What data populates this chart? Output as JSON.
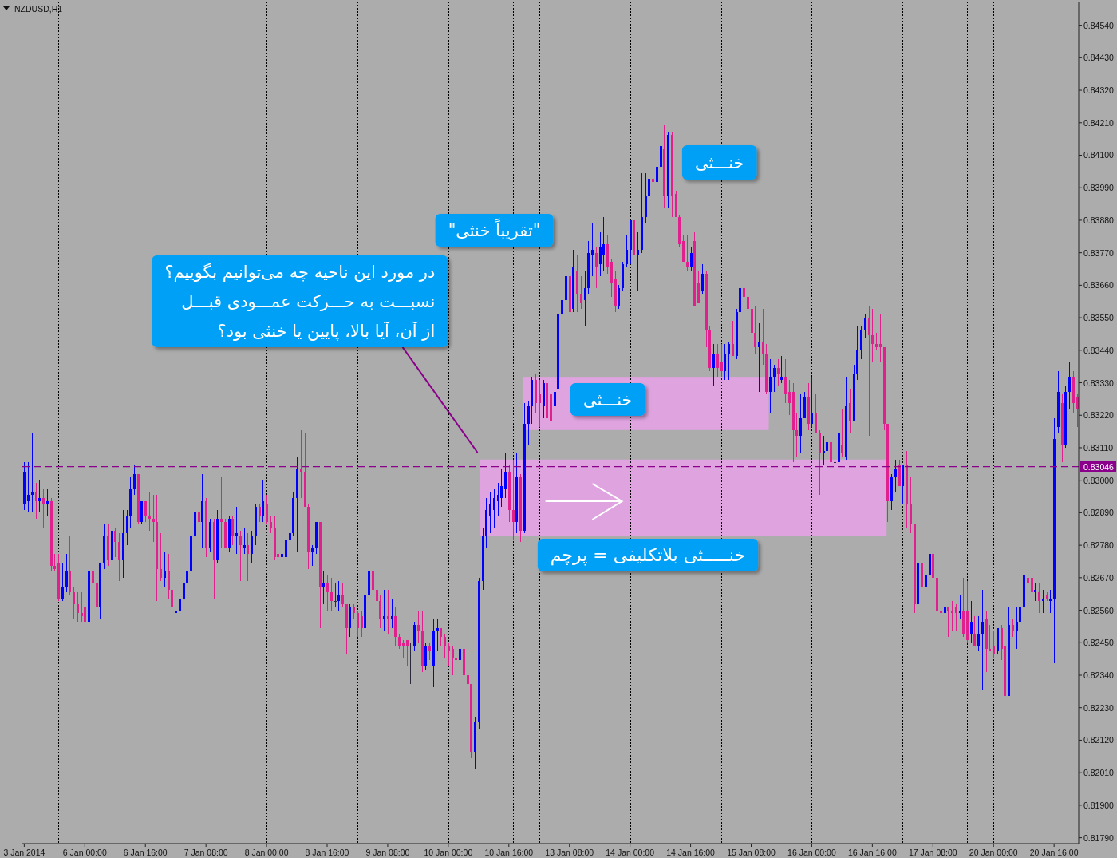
{
  "chart_data": {
    "type": "candlestick",
    "title": "NZDUSD,H1",
    "categories": [
      "3 Jan 2014",
      null,
      null,
      null,
      null,
      null,
      null,
      null,
      null,
      null,
      null,
      null,
      null,
      null,
      null,
      null,
      "6 Jan 00:00",
      null,
      null,
      null,
      null,
      null,
      null,
      null,
      null,
      null,
      null,
      null,
      null,
      null,
      null,
      null,
      "6 Jan 16:00",
      null,
      null,
      null,
      null,
      null,
      null,
      null,
      null,
      null,
      null,
      null,
      null,
      null,
      null,
      null,
      "7 Jan 08:00",
      null,
      null,
      null,
      null,
      null,
      null,
      null,
      null,
      null,
      null,
      null,
      null,
      null,
      null,
      null,
      "8 Jan 00:00",
      null,
      null,
      null,
      null,
      null,
      null,
      null,
      null,
      null,
      null,
      null,
      null,
      null,
      null,
      null,
      "8 Jan 16:00",
      null,
      null,
      null,
      null,
      null,
      null,
      null,
      null,
      null,
      null,
      null,
      null,
      null,
      null,
      null,
      "9 Jan 08:00",
      null,
      null,
      null,
      null,
      null,
      null,
      null,
      null,
      null,
      null,
      null,
      null,
      null,
      null,
      null,
      "10 Jan 00:00",
      null,
      null,
      null,
      null,
      null,
      null,
      null,
      null,
      null,
      null,
      null,
      null,
      null,
      null,
      null,
      "10 Jan 16:00",
      null,
      null,
      null,
      null,
      null,
      null,
      null,
      null,
      null,
      null,
      null,
      null,
      null,
      null,
      null,
      "13 Jan 08:00",
      null,
      null,
      null,
      null,
      null,
      null,
      null,
      null,
      null,
      null,
      null,
      null,
      null,
      null,
      null,
      "14 Jan 00:00",
      null,
      null,
      null,
      null,
      null,
      null,
      null,
      null,
      null,
      null,
      null,
      null,
      null,
      null,
      null,
      "14 Jan 16:00",
      null,
      null,
      null,
      null,
      null,
      null,
      null,
      null,
      null,
      null,
      null,
      null,
      null,
      null,
      null,
      "15 Jan 08:00",
      null,
      null,
      null,
      null,
      null,
      null,
      null,
      null,
      null,
      null,
      null,
      null,
      null,
      null,
      null,
      "16 Jan 00:00",
      null,
      null,
      null,
      null,
      null,
      null,
      null,
      null,
      null,
      null,
      null,
      null,
      null,
      null,
      null,
      "16 Jan 16:00",
      null,
      null,
      null,
      null,
      null,
      null,
      null,
      null,
      null,
      null,
      null,
      null,
      null,
      null,
      null,
      "17 Jan 08:00",
      null,
      null,
      null,
      null,
      null,
      null,
      null,
      null,
      null,
      null,
      null,
      null,
      null,
      null,
      null,
      "20 Jan 00:00",
      null,
      null,
      null,
      null,
      null,
      null,
      null,
      null,
      null,
      null,
      null,
      null,
      null,
      null,
      null,
      "20 Jan 16:00",
      null,
      null,
      null,
      null,
      null,
      null
    ],
    "ohlc": [
      [
        0.8292,
        0.8306,
        0.829,
        0.8303
      ],
      [
        0.8293,
        0.8306,
        0.8289,
        0.8295
      ],
      [
        0.8295,
        0.8316,
        0.8289,
        0.8296
      ],
      [
        0.8296,
        0.8299,
        0.8287,
        0.8293
      ],
      [
        0.8293,
        0.83,
        0.8289,
        0.8294
      ],
      [
        0.8294,
        0.8297,
        0.8284,
        0.8292
      ],
      [
        0.8292,
        0.8297,
        0.8288,
        0.8293
      ],
      [
        0.8293,
        0.8294,
        0.8269,
        0.8271
      ],
      [
        0.8271,
        0.8275,
        0.8269,
        0.827
      ],
      [
        0.8272,
        0.8275,
        0.8259,
        0.826
      ],
      [
        0.826,
        0.8272,
        0.8259,
        0.8264
      ],
      [
        0.8264,
        0.8275,
        0.8262,
        0.8269
      ],
      [
        0.8269,
        0.8281,
        0.8261,
        0.8262
      ],
      [
        0.8262,
        0.8264,
        0.8253,
        0.8258
      ],
      [
        0.8258,
        0.8262,
        0.8252,
        0.8255
      ],
      [
        0.8255,
        0.8262,
        0.8252,
        0.8254
      ],
      [
        0.8257,
        0.8266,
        0.8251,
        0.8252
      ],
      [
        0.8252,
        0.827,
        0.825,
        0.8269
      ],
      [
        0.8269,
        0.8279,
        0.8256,
        0.8265
      ],
      [
        0.8265,
        0.8272,
        0.8256,
        0.8257
      ],
      [
        0.8257,
        0.8272,
        0.8253,
        0.8272
      ],
      [
        0.8272,
        0.8285,
        0.827,
        0.8281
      ],
      [
        0.8281,
        0.8285,
        0.8271,
        0.8273
      ],
      [
        0.8273,
        0.8284,
        0.8264,
        0.8283
      ],
      [
        0.8283,
        0.8284,
        0.8274,
        0.8279
      ],
      [
        0.8279,
        0.8282,
        0.8266,
        0.8273
      ],
      [
        0.8273,
        0.829,
        0.8267,
        0.8282
      ],
      [
        0.8282,
        0.829,
        0.8278,
        0.8288
      ],
      [
        0.8288,
        0.8301,
        0.8284,
        0.8297
      ],
      [
        0.8297,
        0.8305,
        0.8295,
        0.8302
      ],
      [
        0.8302,
        0.8302,
        0.8285,
        0.8286
      ],
      [
        0.8286,
        0.8293,
        0.8285,
        0.8293
      ],
      [
        0.8293,
        0.8293,
        0.8286,
        0.8288
      ],
      [
        0.8288,
        0.8296,
        0.8283,
        0.8287
      ],
      [
        0.8287,
        0.8295,
        0.8279,
        0.8286
      ],
      [
        0.8286,
        0.8295,
        0.8259,
        0.827
      ],
      [
        0.827,
        0.8282,
        0.8266,
        0.8267
      ],
      [
        0.8267,
        0.8276,
        0.8264,
        0.8269
      ],
      [
        0.8269,
        0.8275,
        0.826,
        0.8263
      ],
      [
        0.8263,
        0.8267,
        0.8255,
        0.8257
      ],
      [
        0.8255,
        0.8267,
        0.8253,
        0.8256
      ],
      [
        0.8256,
        0.8265,
        0.8255,
        0.826
      ],
      [
        0.826,
        0.8271,
        0.8259,
        0.8265
      ],
      [
        0.8265,
        0.8277,
        0.8261,
        0.8269
      ],
      [
        0.8269,
        0.8283,
        0.8265,
        0.8281
      ],
      [
        0.8281,
        0.8292,
        0.8273,
        0.8289
      ],
      [
        0.8289,
        0.8297,
        0.8286,
        0.8286
      ],
      [
        0.8286,
        0.8302,
        0.8277,
        0.8293
      ],
      [
        0.8293,
        0.8294,
        0.8274,
        0.8277
      ],
      [
        0.8277,
        0.8287,
        0.8276,
        0.8286
      ],
      [
        0.8286,
        0.8287,
        0.826,
        0.8273
      ],
      [
        0.8273,
        0.829,
        0.8272,
        0.8287
      ],
      [
        0.8287,
        0.8301,
        0.8277,
        0.8286
      ],
      [
        0.8286,
        0.8287,
        0.8277,
        0.8277
      ],
      [
        0.8277,
        0.8288,
        0.8276,
        0.8287
      ],
      [
        0.8287,
        0.8288,
        0.8278,
        0.8281
      ],
      [
        0.8281,
        0.8291,
        0.8275,
        0.8282
      ],
      [
        0.8281,
        0.8283,
        0.8266,
        0.8278
      ],
      [
        0.8277,
        0.8284,
        0.8275,
        0.8278
      ],
      [
        0.8278,
        0.8282,
        0.8266,
        0.8275
      ],
      [
        0.8275,
        0.8283,
        0.8272,
        0.8281
      ],
      [
        0.8281,
        0.8292,
        0.8278,
        0.8291
      ],
      [
        0.8291,
        0.8292,
        0.8286,
        0.8288
      ],
      [
        0.8288,
        0.83,
        0.8286,
        0.8293
      ],
      [
        0.8292,
        0.8295,
        0.8285,
        0.8286
      ],
      [
        0.8286,
        0.8288,
        0.8282,
        0.8284
      ],
      [
        0.8284,
        0.8288,
        0.8273,
        0.8274
      ],
      [
        0.8275,
        0.8278,
        0.8266,
        0.8274
      ],
      [
        0.8274,
        0.828,
        0.8271,
        0.8275
      ],
      [
        0.8274,
        0.828,
        0.8268,
        0.828
      ],
      [
        0.828,
        0.8286,
        0.8276,
        0.8282
      ],
      [
        0.8282,
        0.8296,
        0.8281,
        0.8294
      ],
      [
        0.8294,
        0.8308,
        0.8276,
        0.8304
      ],
      [
        0.8304,
        0.8317,
        0.8294,
        0.8303
      ],
      [
        0.8303,
        0.8316,
        0.8291,
        0.8291
      ],
      [
        0.8291,
        0.8292,
        0.827,
        0.8276
      ],
      [
        0.8276,
        0.8278,
        0.8271,
        0.8277
      ],
      [
        0.8277,
        0.8286,
        0.8275,
        0.8286
      ],
      [
        0.8286,
        0.8286,
        0.825,
        0.8264
      ],
      [
        0.8264,
        0.8269,
        0.8258,
        0.8265
      ],
      [
        0.8265,
        0.8268,
        0.8256,
        0.8262
      ],
      [
        0.8262,
        0.8267,
        0.8256,
        0.8259
      ],
      [
        0.8259,
        0.8265,
        0.8257,
        0.8259
      ],
      [
        0.8259,
        0.8266,
        0.8256,
        0.8261
      ],
      [
        0.8261,
        0.8265,
        0.8257,
        0.8258
      ],
      [
        0.8258,
        0.8258,
        0.8241,
        0.825
      ],
      [
        0.825,
        0.8258,
        0.8247,
        0.8257
      ],
      [
        0.8257,
        0.8258,
        0.8253,
        0.8255
      ],
      [
        0.8255,
        0.8256,
        0.8247,
        0.825
      ],
      [
        0.8254,
        0.8256,
        0.8247,
        0.825
      ],
      [
        0.825,
        0.8263,
        0.8249,
        0.8261
      ],
      [
        0.8261,
        0.827,
        0.826,
        0.8269
      ],
      [
        0.8269,
        0.8272,
        0.8262,
        0.8263
      ],
      [
        0.8263,
        0.8265,
        0.8257,
        0.8259
      ],
      [
        0.8259,
        0.8261,
        0.825,
        0.8253
      ],
      [
        0.8253,
        0.8263,
        0.8249,
        0.8254
      ],
      [
        0.8254,
        0.8263,
        0.8248,
        0.8253
      ],
      [
        0.8253,
        0.826,
        0.825,
        0.8254
      ],
      [
        0.8254,
        0.8257,
        0.8244,
        0.8247
      ],
      [
        0.8247,
        0.8248,
        0.8243,
        0.8244
      ],
      [
        0.8245,
        0.8246,
        0.824,
        0.8244
      ],
      [
        0.8246,
        0.8246,
        0.8237,
        0.8244
      ],
      [
        0.8244,
        0.8245,
        0.8231,
        0.8244
      ],
      [
        0.8244,
        0.8252,
        0.8242,
        0.8251
      ],
      [
        0.8251,
        0.8256,
        0.8245,
        0.8249
      ],
      [
        0.8249,
        0.8256,
        0.8235,
        0.8237
      ],
      [
        0.8237,
        0.8245,
        0.8236,
        0.8244
      ],
      [
        0.8244,
        0.8245,
        0.8239,
        0.8242
      ],
      [
        0.8237,
        0.8253,
        0.823,
        0.8249
      ],
      [
        0.8249,
        0.8253,
        0.8242,
        0.825
      ],
      [
        0.825,
        0.825,
        0.8244,
        0.8247
      ],
      [
        0.8247,
        0.8248,
        0.824,
        0.8244
      ],
      [
        0.8244,
        0.8245,
        0.8237,
        0.8242
      ],
      [
        0.8243,
        0.8244,
        0.8234,
        0.824
      ],
      [
        0.824,
        0.8241,
        0.8235,
        0.8239
      ],
      [
        0.8239,
        0.8248,
        0.8237,
        0.8243
      ],
      [
        0.8243,
        0.8243,
        0.8233,
        0.8234
      ],
      [
        0.8234,
        0.8236,
        0.823,
        0.8231
      ],
      [
        0.8231,
        0.8231,
        0.8206,
        0.8208
      ],
      [
        0.8208,
        0.822,
        0.8202,
        0.8218
      ],
      [
        0.8218,
        0.8267,
        0.8216,
        0.8266
      ],
      [
        0.8266,
        0.8284,
        0.8263,
        0.8281
      ],
      [
        0.8281,
        0.8294,
        0.8277,
        0.829
      ],
      [
        0.8288,
        0.8296,
        0.8282,
        0.8292
      ],
      [
        0.829,
        0.8297,
        0.8284,
        0.8294
      ],
      [
        0.8293,
        0.8299,
        0.8288,
        0.8295
      ],
      [
        0.8294,
        0.8304,
        0.8291,
        0.8298
      ],
      [
        0.8297,
        0.8309,
        0.8294,
        0.8303
      ],
      [
        0.8303,
        0.8305,
        0.8286,
        0.829
      ],
      [
        0.829,
        0.8307,
        0.828,
        0.8286
      ],
      [
        0.8286,
        0.8309,
        0.8282,
        0.8301
      ],
      [
        0.8301,
        0.8302,
        0.8279,
        0.8283
      ],
      [
        0.8283,
        0.8326,
        0.8282,
        0.8319
      ],
      [
        0.8319,
        0.8327,
        0.8312,
        0.8325
      ],
      [
        0.8325,
        0.8335,
        0.8319,
        0.8334
      ],
      [
        0.8334,
        0.8336,
        0.8323,
        0.8326
      ],
      [
        0.8329,
        0.8334,
        0.8318,
        0.8326
      ],
      [
        0.8325,
        0.8334,
        0.8321,
        0.8333
      ],
      [
        0.8333,
        0.8335,
        0.8318,
        0.8321
      ],
      [
        0.8329,
        0.8336,
        0.8317,
        0.832
      ],
      [
        0.8325,
        0.8336,
        0.832,
        0.833
      ],
      [
        0.8331,
        0.8381,
        0.8328,
        0.8356
      ],
      [
        0.8356,
        0.8373,
        0.834,
        0.8361
      ],
      [
        0.8361,
        0.8376,
        0.8352,
        0.8369
      ],
      [
        0.8369,
        0.8373,
        0.8357,
        0.8357
      ],
      [
        0.8358,
        0.8378,
        0.8357,
        0.8372
      ],
      [
        0.8371,
        0.8376,
        0.8357,
        0.8363
      ],
      [
        0.8363,
        0.8369,
        0.8358,
        0.836
      ],
      [
        0.8361,
        0.8371,
        0.8352,
        0.8365
      ],
      [
        0.8365,
        0.8381,
        0.8363,
        0.8377
      ],
      [
        0.8376,
        0.8387,
        0.8369,
        0.8378
      ],
      [
        0.8377,
        0.8379,
        0.8365,
        0.8372
      ],
      [
        0.8373,
        0.8384,
        0.8369,
        0.8379
      ],
      [
        0.8376,
        0.8389,
        0.8371,
        0.838
      ],
      [
        0.838,
        0.8383,
        0.837,
        0.8372
      ],
      [
        0.8374,
        0.8375,
        0.8362,
        0.8367
      ],
      [
        0.8368,
        0.8371,
        0.8357,
        0.8359
      ],
      [
        0.8359,
        0.8366,
        0.8358,
        0.8365
      ],
      [
        0.8365,
        0.8374,
        0.8364,
        0.8373
      ],
      [
        0.8373,
        0.8383,
        0.8372,
        0.8378
      ],
      [
        0.8378,
        0.8388,
        0.8373,
        0.8388
      ],
      [
        0.8388,
        0.8388,
        0.8376,
        0.8376
      ],
      [
        0.8376,
        0.8384,
        0.8364,
        0.8378
      ],
      [
        0.8378,
        0.8404,
        0.8377,
        0.8389
      ],
      [
        0.8389,
        0.8404,
        0.8387,
        0.8396
      ],
      [
        0.8396,
        0.8431,
        0.8395,
        0.8402
      ],
      [
        0.8402,
        0.8404,
        0.8392,
        0.8401
      ],
      [
        0.8401,
        0.8417,
        0.84,
        0.8406
      ],
      [
        0.8406,
        0.8425,
        0.8405,
        0.8413
      ],
      [
        0.8412,
        0.842,
        0.8392,
        0.8396
      ],
      [
        0.8396,
        0.8418,
        0.8392,
        0.8417
      ],
      [
        0.8417,
        0.8418,
        0.8389,
        0.8396
      ],
      [
        0.8397,
        0.8398,
        0.8389,
        0.8389
      ],
      [
        0.8389,
        0.839,
        0.8379,
        0.838
      ],
      [
        0.8381,
        0.8383,
        0.8374,
        0.8374
      ],
      [
        0.8374,
        0.8383,
        0.8371,
        0.8372
      ],
      [
        0.8372,
        0.8379,
        0.8371,
        0.8377
      ],
      [
        0.8381,
        0.8384,
        0.8359,
        0.8359
      ],
      [
        0.8367,
        0.8371,
        0.836,
        0.836
      ],
      [
        0.8364,
        0.8373,
        0.8363,
        0.837
      ],
      [
        0.837,
        0.8371,
        0.8345,
        0.8351
      ],
      [
        0.8351,
        0.8352,
        0.8337,
        0.8338
      ],
      [
        0.8338,
        0.8346,
        0.8332,
        0.8343
      ],
      [
        0.8343,
        0.8346,
        0.8335,
        0.8338
      ],
      [
        0.834,
        0.8346,
        0.8335,
        0.8337
      ],
      [
        0.8337,
        0.8346,
        0.8334,
        0.8343
      ],
      [
        0.8343,
        0.8347,
        0.8334,
        0.8346
      ],
      [
        0.8346,
        0.8354,
        0.8342,
        0.8342
      ],
      [
        0.8342,
        0.8358,
        0.8341,
        0.8357
      ],
      [
        0.8357,
        0.8372,
        0.8356,
        0.8365
      ],
      [
        0.8365,
        0.8368,
        0.8361,
        0.8362
      ],
      [
        0.8362,
        0.8363,
        0.8357,
        0.8358
      ],
      [
        0.8358,
        0.8362,
        0.834,
        0.835
      ],
      [
        0.835,
        0.8359,
        0.8343,
        0.8345
      ],
      [
        0.8345,
        0.8353,
        0.833,
        0.8347
      ],
      [
        0.8347,
        0.8358,
        0.8339,
        0.8343
      ],
      [
        0.8343,
        0.8346,
        0.8329,
        0.833
      ],
      [
        0.833,
        0.8341,
        0.8323,
        0.8335
      ],
      [
        0.8335,
        0.8339,
        0.833,
        0.8338
      ],
      [
        0.8338,
        0.8341,
        0.8332,
        0.8336
      ],
      [
        0.8334,
        0.8342,
        0.8333,
        0.8335
      ],
      [
        0.8335,
        0.8341,
        0.8326,
        0.8329
      ],
      [
        0.833,
        0.8334,
        0.8322,
        0.8326
      ],
      [
        0.833,
        0.8333,
        0.8306,
        0.8317
      ],
      [
        0.8317,
        0.8323,
        0.8308,
        0.8315
      ],
      [
        0.8315,
        0.8329,
        0.8309,
        0.8321
      ],
      [
        0.8321,
        0.833,
        0.8321,
        0.8328
      ],
      [
        0.8328,
        0.8333,
        0.8317,
        0.8319
      ],
      [
        0.8319,
        0.8335,
        0.8318,
        0.8323
      ],
      [
        0.8323,
        0.8329,
        0.8316,
        0.8316
      ],
      [
        0.8316,
        0.8317,
        0.8295,
        0.8309
      ],
      [
        0.8309,
        0.8315,
        0.8305,
        0.831
      ],
      [
        0.831,
        0.8314,
        0.8307,
        0.8313
      ],
      [
        0.8313,
        0.8316,
        0.8305,
        0.8306
      ],
      [
        0.8306,
        0.8307,
        0.8296,
        0.8306
      ],
      [
        0.8306,
        0.8318,
        0.8295,
        0.8316
      ],
      [
        0.8312,
        0.8324,
        0.8308,
        0.8309
      ],
      [
        0.8308,
        0.8335,
        0.8307,
        0.8325
      ],
      [
        0.8326,
        0.8331,
        0.8316,
        0.832
      ],
      [
        0.832,
        0.8339,
        0.832,
        0.8336
      ],
      [
        0.8336,
        0.8352,
        0.8334,
        0.8344
      ],
      [
        0.8344,
        0.8352,
        0.8341,
        0.8351
      ],
      [
        0.8351,
        0.8356,
        0.8348,
        0.8355
      ],
      [
        0.8355,
        0.8359,
        0.8315,
        0.8349
      ],
      [
        0.8349,
        0.8358,
        0.834,
        0.8346
      ],
      [
        0.8346,
        0.835,
        0.8344,
        0.8345
      ],
      [
        0.8346,
        0.8356,
        0.834,
        0.8345
      ],
      [
        0.8345,
        0.8345,
        0.8317,
        0.8319
      ],
      [
        0.8319,
        0.8319,
        0.8286,
        0.8293
      ],
      [
        0.8293,
        0.8302,
        0.829,
        0.8301
      ],
      [
        0.8301,
        0.8307,
        0.8296,
        0.8304
      ],
      [
        0.8305,
        0.8307,
        0.8298,
        0.8298
      ],
      [
        0.8298,
        0.8305,
        0.8292,
        0.8305
      ],
      [
        0.8305,
        0.831,
        0.8284,
        0.8292
      ],
      [
        0.8292,
        0.8301,
        0.8282,
        0.8285
      ],
      [
        0.8285,
        0.8285,
        0.8255,
        0.8258
      ],
      [
        0.8258,
        0.8272,
        0.8257,
        0.8272
      ],
      [
        0.8272,
        0.8275,
        0.8264,
        0.8264
      ],
      [
        0.8264,
        0.827,
        0.8261,
        0.8268
      ],
      [
        0.8268,
        0.8276,
        0.8256,
        0.8275
      ],
      [
        0.8275,
        0.8278,
        0.8267,
        0.8267
      ],
      [
        0.8267,
        0.8277,
        0.8255,
        0.8256
      ],
      [
        0.8256,
        0.8266,
        0.8254,
        0.8255
      ],
      [
        0.8255,
        0.8263,
        0.825,
        0.8257
      ],
      [
        0.8257,
        0.8257,
        0.8247,
        0.8256
      ],
      [
        0.8256,
        0.8259,
        0.8249,
        0.8255
      ],
      [
        0.8257,
        0.8258,
        0.8249,
        0.8255
      ],
      [
        0.8255,
        0.8261,
        0.8253,
        0.8256
      ],
      [
        0.8256,
        0.8267,
        0.8247,
        0.8248
      ],
      [
        0.8256,
        0.8266,
        0.8245,
        0.8246
      ],
      [
        0.8248,
        0.8259,
        0.8245,
        0.8252
      ],
      [
        0.8248,
        0.8254,
        0.8244,
        0.8244
      ],
      [
        0.8244,
        0.8254,
        0.8242,
        0.8248
      ],
      [
        0.8248,
        0.8263,
        0.8229,
        0.8252
      ],
      [
        0.8253,
        0.8256,
        0.8235,
        0.8243
      ],
      [
        0.8243,
        0.8251,
        0.8242,
        0.8242
      ],
      [
        0.8244,
        0.8249,
        0.824,
        0.8241
      ],
      [
        0.8242,
        0.825,
        0.8241,
        0.825
      ],
      [
        0.825,
        0.8251,
        0.8239,
        0.8243
      ],
      [
        0.8244,
        0.8245,
        0.8211,
        0.8227
      ],
      [
        0.8227,
        0.8257,
        0.8227,
        0.8251
      ],
      [
        0.8251,
        0.8253,
        0.8247,
        0.8249
      ],
      [
        0.8249,
        0.8257,
        0.8243,
        0.8252
      ],
      [
        0.8252,
        0.826,
        0.8252,
        0.8257
      ],
      [
        0.8257,
        0.8272,
        0.8257,
        0.8268
      ],
      [
        0.8267,
        0.8269,
        0.8255,
        0.8265
      ],
      [
        0.8267,
        0.827,
        0.8255,
        0.8262
      ],
      [
        0.8262,
        0.8265,
        0.8259,
        0.8263
      ],
      [
        0.8262,
        0.8265,
        0.8255,
        0.8259
      ],
      [
        0.8259,
        0.8263,
        0.8255,
        0.826
      ],
      [
        0.8261,
        0.8262,
        0.8259,
        0.826
      ],
      [
        0.8259,
        0.8263,
        0.8255,
        0.826
      ],
      [
        0.826,
        0.8321,
        0.8238,
        0.8314
      ],
      [
        0.8318,
        0.8337,
        0.8316,
        0.833
      ],
      [
        0.8326,
        0.8329,
        0.8306,
        0.8312
      ],
      [
        0.8312,
        0.8332,
        0.8311,
        0.833
      ],
      [
        0.833,
        0.834,
        0.8324,
        0.8335
      ],
      [
        0.8335,
        0.8337,
        0.8323,
        0.8326
      ],
      [
        0.8328,
        0.8329,
        0.8318,
        0.8324
      ]
    ],
    "ylim": [
      0.8177,
      0.8462
    ],
    "yticks": [
      {
        "value": 0.8179,
        "label": "0.81790"
      },
      {
        "value": 0.819,
        "label": "0.81900"
      },
      {
        "value": 0.8201,
        "label": "0.82010"
      },
      {
        "value": 0.8212,
        "label": "0.82120"
      },
      {
        "value": 0.8223,
        "label": "0.82230"
      },
      {
        "value": 0.8234,
        "label": "0.82340"
      },
      {
        "value": 0.8245,
        "label": "0.82450"
      },
      {
        "value": 0.8256,
        "label": "0.82560"
      },
      {
        "value": 0.8267,
        "label": "0.82670"
      },
      {
        "value": 0.8278,
        "label": "0.82780"
      },
      {
        "value": 0.8289,
        "label": "0.82890"
      },
      {
        "value": 0.83,
        "label": "0.83000"
      },
      {
        "value": 0.8311,
        "label": "0.83110"
      },
      {
        "value": 0.8322,
        "label": "0.83220"
      },
      {
        "value": 0.8333,
        "label": "0.83330"
      },
      {
        "value": 0.8344,
        "label": "0.83440"
      },
      {
        "value": 0.8355,
        "label": "0.83550"
      },
      {
        "value": 0.8366,
        "label": "0.83660"
      },
      {
        "value": 0.8377,
        "label": "0.83770"
      },
      {
        "value": 0.8388,
        "label": "0.83880"
      },
      {
        "value": 0.8399,
        "label": "0.83990"
      },
      {
        "value": 0.841,
        "label": "0.84100"
      },
      {
        "value": 0.8421,
        "label": "0.84210"
      },
      {
        "value": 0.8432,
        "label": "0.84320"
      },
      {
        "value": 0.8443,
        "label": "0.84430"
      },
      {
        "value": 0.8454,
        "label": "0.84540"
      }
    ],
    "ref_lines": [
      {
        "axis": "y",
        "value": 0.83046,
        "label": "0.83046",
        "color": "#8b008b",
        "line_style": "dashed"
      }
    ],
    "bands": [
      {
        "axis": "y",
        "from": 0.8317,
        "to": 0.8335,
        "label": "خنـــثی",
        "color": "#dfa4df"
      },
      {
        "axis": "y",
        "from": 0.8281,
        "to": 0.8307,
        "label": "خنـــــثی بلاتکلیفی = پرچم",
        "color": "#dfa4df"
      }
    ],
    "annotations": [
      "در مورد این ناحیه چه می‌توانیم بگوییم؟\nنسبـــت به حـــرکت عمـــودی قبـــل\nاز آن، آیا بالا، پایین یا خنثی بود؟",
      "\"تقریباً خنثی\"",
      "خنـــثی"
    ]
  }
}
